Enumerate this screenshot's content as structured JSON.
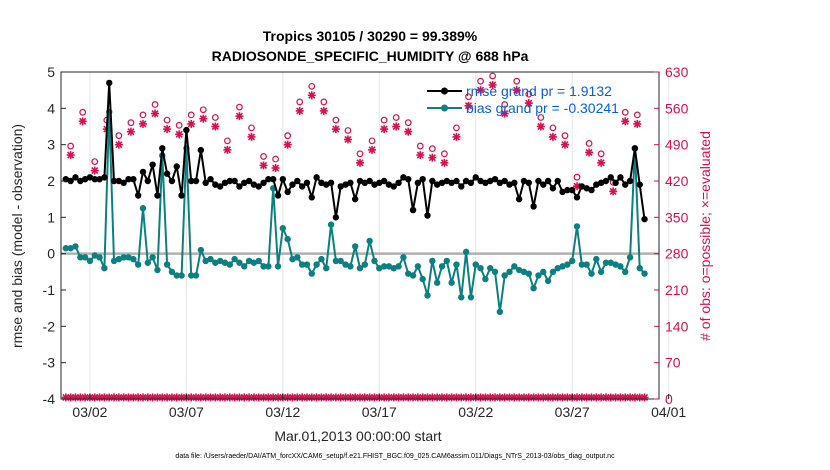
{
  "chart_data": {
    "type": "line",
    "title": "Tropics 30105 / 30290 = 99.389%",
    "subtitle": "RADIOSONDE_SPECIFIC_HUMIDITY @ 688 hPa",
    "xlabel": "Mar.01,2013 00:00:00 start",
    "ylabel_left": "rmse and bias (model - observation)",
    "ylabel_right": "# of obs: o=possible; ×=evaluated",
    "footer": "data file: /Users/raeder/DAI/ATM_forcXX/CAM6_setup/f.e21.FHIST_BGC.f09_025.CAM6assim.011/Diags_NTrS_2013-03/obs_diag_output.nc",
    "xlim": [
      0.5,
      31.5
    ],
    "ylim_left": [
      -4,
      5
    ],
    "ylim_right": [
      0,
      630
    ],
    "yticks_left": [
      "-4",
      "-3",
      "-2",
      "-1",
      "0",
      "1",
      "2",
      "3",
      "4",
      "5"
    ],
    "yticks_right": [
      "0",
      "70",
      "140",
      "210",
      "280",
      "350",
      "420",
      "490",
      "560",
      "630"
    ],
    "xticks": [
      {
        "day": 2,
        "label": "03/02"
      },
      {
        "day": 7,
        "label": "03/07"
      },
      {
        "day": 12,
        "label": "03/12"
      },
      {
        "day": 17,
        "label": "03/17"
      },
      {
        "day": 22,
        "label": "03/22"
      },
      {
        "day": 27,
        "label": "03/27"
      },
      {
        "day": 32,
        "label": "04/01"
      }
    ],
    "legend": [
      {
        "name": "rmse grand pr = 1.9132",
        "color": "#000000"
      },
      {
        "name": "bias grand pr = -0.30241",
        "color": "#0c8080"
      }
    ],
    "colors": {
      "rmse": "#000000",
      "bias": "#0c8080",
      "obs": "#d6104f",
      "zero_line": "#b0b0b0"
    },
    "x_start": 0.75,
    "x_step": 0.25,
    "rmse": [
      2.05,
      2.0,
      2.1,
      2.0,
      2.05,
      2.1,
      2.05,
      2.05,
      2.1,
      4.7,
      2.0,
      2.0,
      1.95,
      2.05,
      2.05,
      1.6,
      2.25,
      2.0,
      2.45,
      1.6,
      2.9,
      2.2,
      2.0,
      2.4,
      1.6,
      3.4,
      2.0,
      2.0,
      2.85,
      1.95,
      2.05,
      1.9,
      1.85,
      1.95,
      2.0,
      2.0,
      1.85,
      1.95,
      2.0,
      1.9,
      1.85,
      1.95,
      2.05,
      2.05,
      1.6,
      2.05,
      1.7,
      1.9,
      2.0,
      1.85,
      1.95,
      1.55,
      2.1,
      1.95,
      1.9,
      1.95,
      1.0,
      1.85,
      1.9,
      1.95,
      1.5,
      2.0,
      1.95,
      2.0,
      1.9,
      1.95,
      2.0,
      1.9,
      1.85,
      1.95,
      2.1,
      2.05,
      1.2,
      1.95,
      2.05,
      1.05,
      2.0,
      1.9,
      1.95,
      2.0,
      1.95,
      2.0,
      1.85,
      2.0,
      1.95,
      2.1,
      2.0,
      1.95,
      2.0,
      2.05,
      1.95,
      2.0,
      1.9,
      1.95,
      1.5,
      2.0,
      1.95,
      1.3,
      2.0,
      1.9,
      2.0,
      1.8,
      2.0,
      1.7,
      1.75,
      1.75,
      1.55,
      1.85,
      1.8,
      1.75,
      1.9,
      1.95,
      2.0,
      2.1,
      1.95,
      2.1,
      1.9,
      2.0,
      2.9,
      1.9,
      0.95
    ],
    "bias": [
      0.15,
      0.15,
      0.2,
      -0.1,
      -0.1,
      -0.2,
      -0.05,
      -0.1,
      -0.4,
      3.9,
      -0.2,
      -0.15,
      -0.1,
      -0.1,
      -0.15,
      -0.3,
      1.25,
      -0.25,
      -0.1,
      -0.45,
      2.7,
      -0.3,
      -0.5,
      -0.6,
      -0.6,
      2.9,
      -0.6,
      -0.6,
      0.1,
      -0.2,
      -0.15,
      -0.25,
      -0.2,
      -0.25,
      -0.3,
      -0.15,
      -0.25,
      -0.35,
      -0.2,
      -0.25,
      -0.2,
      -0.35,
      -0.35,
      1.8,
      -0.35,
      0.7,
      0.4,
      -0.15,
      -0.1,
      -0.3,
      -0.3,
      -0.55,
      -0.3,
      -0.15,
      -0.4,
      0.8,
      -0.2,
      -0.2,
      -0.3,
      -0.35,
      0.2,
      -0.4,
      -0.3,
      0.35,
      -0.2,
      -0.4,
      -0.35,
      -0.35,
      -0.4,
      -0.35,
      -0.1,
      -0.55,
      -0.6,
      -0.35,
      -0.7,
      -1.15,
      -0.2,
      -0.8,
      -0.35,
      -0.2,
      -0.8,
      -0.3,
      -1.2,
      0.05,
      -1.2,
      -0.3,
      -0.4,
      -0.7,
      -0.4,
      -0.5,
      -1.6,
      -0.6,
      -0.5,
      -0.35,
      -0.45,
      -0.5,
      -0.55,
      -0.95,
      -0.6,
      -0.5,
      -0.75,
      -0.5,
      -0.4,
      -0.35,
      -0.3,
      -0.2,
      0.75,
      -0.3,
      -0.3,
      -0.55,
      -0.15,
      -0.5,
      -0.25,
      -0.25,
      -0.3,
      -0.35,
      -0.5,
      -0.1,
      2.9,
      -0.4,
      -0.55
    ],
    "obs_peaks": [
      470,
      535,
      440,
      520,
      490,
      515,
      530,
      550,
      520,
      510,
      530,
      540,
      525,
      480,
      545,
      505,
      450,
      445,
      490,
      555,
      585,
      555,
      520,
      500,
      455,
      480,
      520,
      525,
      515,
      470,
      465,
      455,
      505,
      565,
      595,
      605,
      550,
      595,
      570,
      525,
      505,
      490,
      410,
      475,
      455,
      400,
      535,
      530
    ]
  }
}
